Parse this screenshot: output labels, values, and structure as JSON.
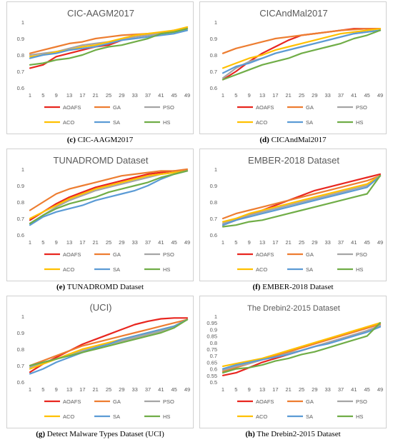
{
  "chart_data": [
    {
      "type": "line",
      "title": "CIC-AAGM2017",
      "caption_letter": "(c)",
      "caption_text": "CIC-AAGM2017",
      "x": [
        1,
        5,
        9,
        13,
        17,
        21,
        25,
        29,
        33,
        37,
        41,
        45,
        49
      ],
      "ylim": [
        0.6,
        1.0
      ],
      "yticks": [
        "0.6",
        "0.7",
        "0.8",
        "0.9",
        "1"
      ],
      "series": [
        {
          "name": "AOAFS",
          "color": "#e8261f",
          "values": [
            0.72,
            0.74,
            0.79,
            0.81,
            0.83,
            0.85,
            0.86,
            0.89,
            0.91,
            0.92,
            0.93,
            0.95,
            0.96
          ]
        },
        {
          "name": "GA",
          "color": "#ed7d31",
          "values": [
            0.81,
            0.83,
            0.85,
            0.87,
            0.88,
            0.9,
            0.91,
            0.92,
            0.925,
            0.93,
            0.935,
            0.945,
            0.97
          ]
        },
        {
          "name": "PSO",
          "color": "#a5a5a5",
          "values": [
            0.8,
            0.81,
            0.82,
            0.84,
            0.86,
            0.87,
            0.88,
            0.89,
            0.91,
            0.92,
            0.93,
            0.94,
            0.96
          ]
        },
        {
          "name": "ACO",
          "color": "#ffc000",
          "values": [
            0.79,
            0.8,
            0.82,
            0.83,
            0.85,
            0.86,
            0.88,
            0.9,
            0.92,
            0.93,
            0.94,
            0.95,
            0.97
          ]
        },
        {
          "name": "SA",
          "color": "#5b9bd5",
          "values": [
            0.78,
            0.8,
            0.81,
            0.83,
            0.84,
            0.85,
            0.87,
            0.89,
            0.9,
            0.91,
            0.92,
            0.93,
            0.95
          ]
        },
        {
          "name": "HS",
          "color": "#70ad47",
          "values": [
            0.74,
            0.75,
            0.77,
            0.78,
            0.8,
            0.83,
            0.85,
            0.86,
            0.88,
            0.9,
            0.93,
            0.94,
            0.96
          ]
        }
      ]
    },
    {
      "type": "line",
      "title": "CICAndMal2017",
      "caption_letter": "(d)",
      "caption_text": "CICAndMal2017",
      "x": [
        1,
        5,
        9,
        13,
        17,
        21,
        25,
        29,
        33,
        37,
        41,
        45,
        49
      ],
      "ylim": [
        0.6,
        1.0
      ],
      "yticks": [
        "0.6",
        "0.7",
        "0.8",
        "0.9",
        "1"
      ],
      "series": [
        {
          "name": "AOAFS",
          "color": "#e8261f",
          "values": [
            0.65,
            0.7,
            0.76,
            0.81,
            0.85,
            0.89,
            0.92,
            0.93,
            0.94,
            0.95,
            0.96,
            0.96,
            0.96
          ]
        },
        {
          "name": "GA",
          "color": "#ed7d31",
          "values": [
            0.81,
            0.84,
            0.86,
            0.88,
            0.9,
            0.91,
            0.92,
            0.93,
            0.94,
            0.95,
            0.955,
            0.96,
            0.96
          ]
        },
        {
          "name": "PSO",
          "color": "#a5a5a5",
          "values": [
            0.66,
            0.72,
            0.76,
            0.78,
            0.81,
            0.83,
            0.85,
            0.87,
            0.89,
            0.91,
            0.93,
            0.94,
            0.95
          ]
        },
        {
          "name": "ACO",
          "color": "#ffc000",
          "values": [
            0.72,
            0.75,
            0.78,
            0.8,
            0.83,
            0.85,
            0.87,
            0.89,
            0.91,
            0.93,
            0.94,
            0.95,
            0.96
          ]
        },
        {
          "name": "SA",
          "color": "#5b9bd5",
          "values": [
            0.69,
            0.73,
            0.75,
            0.78,
            0.81,
            0.83,
            0.85,
            0.87,
            0.89,
            0.91,
            0.93,
            0.94,
            0.95
          ]
        },
        {
          "name": "HS",
          "color": "#70ad47",
          "values": [
            0.65,
            0.68,
            0.71,
            0.74,
            0.76,
            0.78,
            0.81,
            0.83,
            0.85,
            0.87,
            0.9,
            0.92,
            0.95
          ]
        }
      ]
    },
    {
      "type": "line",
      "title": "TUNADROMD Dataset",
      "caption_letter": "(e)",
      "caption_text": "TUNADROMD Dataset",
      "x": [
        1,
        5,
        9,
        13,
        17,
        21,
        25,
        29,
        33,
        37,
        41,
        45,
        49
      ],
      "ylim": [
        0.6,
        1.0
      ],
      "yticks": [
        "0.6",
        "0.7",
        "0.8",
        "0.9",
        "1"
      ],
      "series": [
        {
          "name": "AOAFS",
          "color": "#e8261f",
          "values": [
            0.69,
            0.74,
            0.79,
            0.83,
            0.86,
            0.89,
            0.91,
            0.93,
            0.95,
            0.97,
            0.98,
            0.99,
            0.99
          ]
        },
        {
          "name": "GA",
          "color": "#ed7d31",
          "values": [
            0.75,
            0.8,
            0.85,
            0.88,
            0.9,
            0.92,
            0.94,
            0.96,
            0.97,
            0.98,
            0.99,
            0.99,
            1.0
          ]
        },
        {
          "name": "PSO",
          "color": "#a5a5a5",
          "values": [
            0.67,
            0.72,
            0.77,
            0.81,
            0.84,
            0.87,
            0.89,
            0.91,
            0.93,
            0.95,
            0.97,
            0.98,
            0.99
          ]
        },
        {
          "name": "ACO",
          "color": "#ffc000",
          "values": [
            0.7,
            0.74,
            0.78,
            0.82,
            0.85,
            0.88,
            0.9,
            0.92,
            0.94,
            0.96,
            0.97,
            0.98,
            0.99
          ]
        },
        {
          "name": "SA",
          "color": "#5b9bd5",
          "values": [
            0.66,
            0.71,
            0.74,
            0.76,
            0.78,
            0.81,
            0.83,
            0.85,
            0.87,
            0.9,
            0.94,
            0.97,
            0.99
          ]
        },
        {
          "name": "HS",
          "color": "#70ad47",
          "values": [
            0.67,
            0.72,
            0.76,
            0.79,
            0.81,
            0.83,
            0.86,
            0.88,
            0.9,
            0.92,
            0.95,
            0.97,
            0.99
          ]
        }
      ]
    },
    {
      "type": "line",
      "title": "EMBER-2018 Dataset",
      "caption_letter": "(f)",
      "caption_text": "EMBER-2018 Dataset",
      "x": [
        1,
        5,
        9,
        13,
        17,
        21,
        25,
        29,
        33,
        37,
        41,
        45,
        49
      ],
      "ylim": [
        0.6,
        1.0
      ],
      "yticks": [
        "0.6",
        "0.7",
        "0.8",
        "0.9",
        "1"
      ],
      "series": [
        {
          "name": "AOAFS",
          "color": "#e8261f",
          "values": [
            0.66,
            0.69,
            0.72,
            0.75,
            0.78,
            0.81,
            0.84,
            0.87,
            0.89,
            0.91,
            0.93,
            0.95,
            0.97
          ]
        },
        {
          "name": "GA",
          "color": "#ed7d31",
          "values": [
            0.7,
            0.73,
            0.75,
            0.77,
            0.79,
            0.81,
            0.83,
            0.85,
            0.87,
            0.89,
            0.91,
            0.93,
            0.96
          ]
        },
        {
          "name": "PSO",
          "color": "#a5a5a5",
          "values": [
            0.67,
            0.7,
            0.72,
            0.74,
            0.76,
            0.78,
            0.8,
            0.82,
            0.84,
            0.86,
            0.88,
            0.9,
            0.96
          ]
        },
        {
          "name": "ACO",
          "color": "#ffc000",
          "values": [
            0.68,
            0.7,
            0.73,
            0.75,
            0.77,
            0.79,
            0.81,
            0.83,
            0.85,
            0.87,
            0.89,
            0.91,
            0.96
          ]
        },
        {
          "name": "SA",
          "color": "#5b9bd5",
          "values": [
            0.66,
            0.69,
            0.71,
            0.73,
            0.75,
            0.77,
            0.79,
            0.81,
            0.83,
            0.85,
            0.87,
            0.89,
            0.96
          ]
        },
        {
          "name": "HS",
          "color": "#70ad47",
          "values": [
            0.65,
            0.66,
            0.68,
            0.69,
            0.71,
            0.73,
            0.75,
            0.77,
            0.79,
            0.81,
            0.83,
            0.85,
            0.96
          ]
        }
      ]
    },
    {
      "type": "line",
      "title": "(UCI)",
      "caption_letter": "(g)",
      "caption_text": "Detect Malware Types Dataset (UCI)",
      "x": [
        1,
        5,
        9,
        13,
        17,
        21,
        25,
        29,
        33,
        37,
        41,
        45,
        49
      ],
      "ylim": [
        0.6,
        1.0
      ],
      "yticks": [
        "0.6",
        "0.7",
        "0.8",
        "0.9",
        "1"
      ],
      "series": [
        {
          "name": "AOAFS",
          "color": "#e8261f",
          "values": [
            0.66,
            0.71,
            0.75,
            0.79,
            0.83,
            0.86,
            0.89,
            0.92,
            0.95,
            0.97,
            0.985,
            0.99,
            0.99
          ]
        },
        {
          "name": "GA",
          "color": "#ed7d31",
          "values": [
            0.7,
            0.73,
            0.76,
            0.79,
            0.82,
            0.84,
            0.86,
            0.88,
            0.9,
            0.92,
            0.94,
            0.96,
            0.98
          ]
        },
        {
          "name": "PSO",
          "color": "#a5a5a5",
          "values": [
            0.69,
            0.72,
            0.74,
            0.77,
            0.79,
            0.81,
            0.83,
            0.85,
            0.87,
            0.89,
            0.91,
            0.94,
            0.98
          ]
        },
        {
          "name": "ACO",
          "color": "#ffc000",
          "values": [
            0.68,
            0.71,
            0.74,
            0.77,
            0.8,
            0.82,
            0.84,
            0.86,
            0.88,
            0.9,
            0.92,
            0.94,
            0.98
          ]
        },
        {
          "name": "SA",
          "color": "#5b9bd5",
          "values": [
            0.65,
            0.68,
            0.72,
            0.75,
            0.78,
            0.81,
            0.83,
            0.86,
            0.88,
            0.9,
            0.92,
            0.94,
            0.98
          ]
        },
        {
          "name": "HS",
          "color": "#70ad47",
          "values": [
            0.7,
            0.72,
            0.74,
            0.76,
            0.78,
            0.8,
            0.82,
            0.84,
            0.86,
            0.88,
            0.9,
            0.93,
            0.98
          ]
        }
      ]
    },
    {
      "type": "line",
      "title": "The Drebin2-2015 Dataset",
      "caption_letter": "(h)",
      "caption_text": "The Drebin2-2015 Dataset",
      "x": [
        1,
        5,
        9,
        13,
        17,
        21,
        25,
        29,
        33,
        37,
        41,
        45,
        49
      ],
      "ylim": [
        0.5,
        1.0
      ],
      "yticks": [
        "0.5",
        "0.55",
        "0.6",
        "0.65",
        "0.7",
        "0.75",
        "0.8",
        "0.85",
        "0.9",
        "0.95",
        "1"
      ],
      "series": [
        {
          "name": "AOAFS",
          "color": "#e8261f",
          "values": [
            0.55,
            0.57,
            0.61,
            0.65,
            0.68,
            0.71,
            0.74,
            0.77,
            0.8,
            0.83,
            0.86,
            0.89,
            0.93
          ]
        },
        {
          "name": "GA",
          "color": "#ed7d31",
          "values": [
            0.58,
            0.61,
            0.64,
            0.67,
            0.7,
            0.73,
            0.76,
            0.79,
            0.82,
            0.85,
            0.88,
            0.91,
            0.94
          ]
        },
        {
          "name": "PSO",
          "color": "#a5a5a5",
          "values": [
            0.59,
            0.62,
            0.64,
            0.67,
            0.69,
            0.72,
            0.74,
            0.77,
            0.8,
            0.83,
            0.86,
            0.89,
            0.93
          ]
        },
        {
          "name": "ACO",
          "color": "#ffc000",
          "values": [
            0.62,
            0.64,
            0.66,
            0.68,
            0.71,
            0.74,
            0.77,
            0.8,
            0.83,
            0.86,
            0.89,
            0.92,
            0.95
          ]
        },
        {
          "name": "SA",
          "color": "#5b9bd5",
          "values": [
            0.6,
            0.63,
            0.65,
            0.67,
            0.69,
            0.71,
            0.74,
            0.77,
            0.79,
            0.82,
            0.85,
            0.88,
            0.92
          ]
        },
        {
          "name": "HS",
          "color": "#70ad47",
          "values": [
            0.57,
            0.6,
            0.61,
            0.63,
            0.66,
            0.68,
            0.71,
            0.73,
            0.76,
            0.79,
            0.82,
            0.85,
            0.95
          ]
        }
      ]
    }
  ]
}
